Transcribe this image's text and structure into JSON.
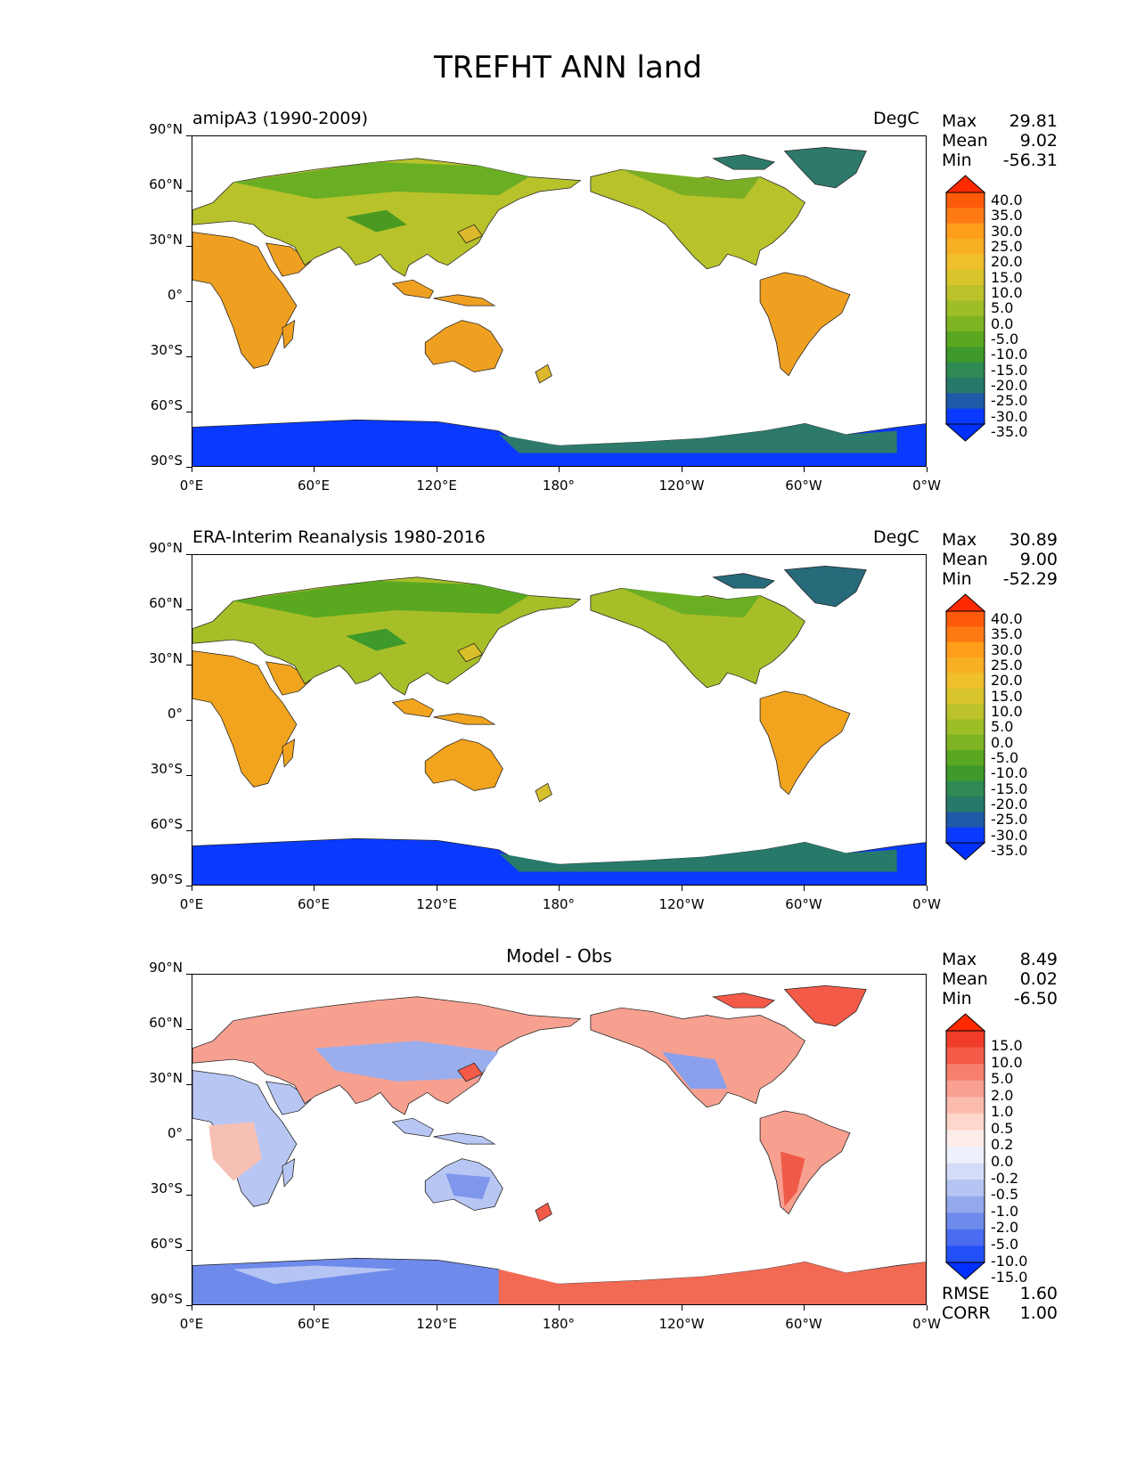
{
  "figure": {
    "title": "TREFHT ANN land"
  },
  "panels": [
    {
      "id": "model",
      "left_title": "amipA3 (1990-2009)",
      "center_title": "",
      "units": "DegC",
      "stats": {
        "max_label": "Max",
        "max": "29.81",
        "mean_label": "Mean",
        "mean": "9.02",
        "min_label": "Min",
        "min": "-56.31"
      },
      "colorbar": {
        "labels": [
          "40.0",
          "35.0",
          "30.0",
          "25.0",
          "20.0",
          "15.0",
          "10.0",
          "5.0",
          "0.0",
          "-5.0",
          "-10.0",
          "-15.0",
          "-20.0",
          "-25.0",
          "-30.0",
          "-35.0"
        ],
        "colors": [
          "#ff2a00",
          "#ff5a0a",
          "#ff7a14",
          "#ff9e1a",
          "#f7b024",
          "#efc02c",
          "#d8c42c",
          "#bcc22a",
          "#9ebe28",
          "#7eb424",
          "#5aa820",
          "#3e9a2a",
          "#2e8a52",
          "#277a6a",
          "#1f5aa8",
          "#0a3aff",
          "#0030ff"
        ]
      }
    },
    {
      "id": "obs",
      "left_title": "ERA-Interim Reanalysis 1980-2016",
      "center_title": "",
      "units": "DegC",
      "stats": {
        "max_label": "Max",
        "max": "30.89",
        "mean_label": "Mean",
        "mean": "9.00",
        "min_label": "Min",
        "min": "-52.29"
      },
      "colorbar": {
        "labels": [
          "40.0",
          "35.0",
          "30.0",
          "25.0",
          "20.0",
          "15.0",
          "10.0",
          "5.0",
          "0.0",
          "-5.0",
          "-10.0",
          "-15.0",
          "-20.0",
          "-25.0",
          "-30.0",
          "-35.0"
        ],
        "colors": [
          "#ff2a00",
          "#ff5a0a",
          "#ff7a14",
          "#ff9e1a",
          "#f7b024",
          "#efc02c",
          "#d8c42c",
          "#bcc22a",
          "#9ebe28",
          "#7eb424",
          "#5aa820",
          "#3e9a2a",
          "#2e8a52",
          "#277a6a",
          "#1f5aa8",
          "#0a3aff",
          "#0030ff"
        ]
      }
    },
    {
      "id": "diff",
      "left_title": "",
      "center_title": "Model - Obs",
      "units": "",
      "stats": {
        "max_label": "Max",
        "max": "8.49",
        "mean_label": "Mean",
        "mean": "0.02",
        "min_label": "Min",
        "min": "-6.50"
      },
      "colorbar": {
        "labels": [
          "15.0",
          "10.0",
          "5.0",
          "2.0",
          "1.0",
          "0.5",
          "0.2",
          "0.0",
          "-0.2",
          "-0.5",
          "-1.0",
          "-2.0",
          "-5.0",
          "-10.0",
          "-15.0"
        ],
        "colors": [
          "#ff2a00",
          "#f03c28",
          "#f45a48",
          "#f7806c",
          "#f9a090",
          "#fbbcae",
          "#fdd6cc",
          "#fdecea",
          "#eef0fb",
          "#d4dcf8",
          "#b6c4f4",
          "#94a8ee",
          "#6e8aea",
          "#4a6cf0",
          "#2250f6",
          "#0030ff"
        ]
      },
      "metrics": {
        "rmse_label": "RMSE",
        "rmse": "1.60",
        "corr_label": "CORR",
        "corr": "1.00"
      }
    }
  ],
  "axes": {
    "y_ticks": [
      "90°N",
      "60°N",
      "30°N",
      "0°",
      "30°S",
      "60°S",
      "90°S"
    ],
    "x_ticks": [
      "0°E",
      "60°E",
      "120°E",
      "180°",
      "120°W",
      "60°W",
      "0°W"
    ]
  }
}
